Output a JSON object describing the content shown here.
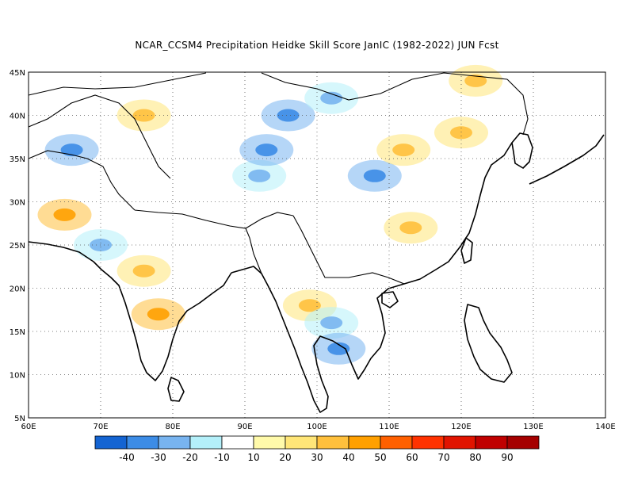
{
  "title": "NCAR_CCSM4  Precipitation Heidke Skill Score JanIC (1982-2022) JUN Fcst",
  "map": {
    "lon_range": [
      60,
      140
    ],
    "lat_range": [
      5,
      45
    ],
    "lon_ticks": [
      "60E",
      "70E",
      "80E",
      "90E",
      "100E",
      "110E",
      "120E",
      "130E",
      "140E"
    ],
    "lat_ticks": [
      "5N",
      "10N",
      "15N",
      "20N",
      "25N",
      "30N",
      "35N",
      "40N",
      "45N"
    ],
    "grid": "dotted"
  },
  "colorbar": {
    "colors": [
      "#1464d2",
      "#3c8ce6",
      "#78b4f0",
      "#b4f0fa",
      "#ffffff",
      "#fffaaa",
      "#ffe678",
      "#ffc03c",
      "#ffa000",
      "#ff6000",
      "#ff3200",
      "#e11400",
      "#c00000",
      "#a50000"
    ],
    "labels": [
      "-40",
      "-30",
      "-20",
      "-10",
      "10",
      "20",
      "30",
      "40",
      "50",
      "60",
      "70",
      "80",
      "90"
    ]
  },
  "regions": [
    {
      "lon": 65,
      "lat": 28.5,
      "value": 35
    },
    {
      "lon": 66,
      "lat": 36,
      "value": -25
    },
    {
      "lon": 76,
      "lat": 22,
      "value": 25
    },
    {
      "lon": 78,
      "lat": 17,
      "value": 30
    },
    {
      "lon": 76,
      "lat": 40,
      "value": 20
    },
    {
      "lon": 92,
      "lat": 33,
      "value": -15
    },
    {
      "lon": 93,
      "lat": 36,
      "value": -25
    },
    {
      "lon": 96,
      "lat": 40,
      "value": -25
    },
    {
      "lon": 108,
      "lat": 33,
      "value": -25
    },
    {
      "lon": 112,
      "lat": 36,
      "value": 25
    },
    {
      "lon": 113,
      "lat": 27,
      "value": 20
    },
    {
      "lon": 122,
      "lat": 44,
      "value": 20
    },
    {
      "lon": 99,
      "lat": 18,
      "value": 20
    },
    {
      "lon": 102,
      "lat": 16,
      "value": -15
    },
    {
      "lon": 103,
      "lat": 13,
      "value": -25
    },
    {
      "lon": 102,
      "lat": 42,
      "value": -15
    },
    {
      "lon": 70,
      "lat": 25,
      "value": -15
    },
    {
      "lon": 120,
      "lat": 38,
      "value": 20
    }
  ]
}
